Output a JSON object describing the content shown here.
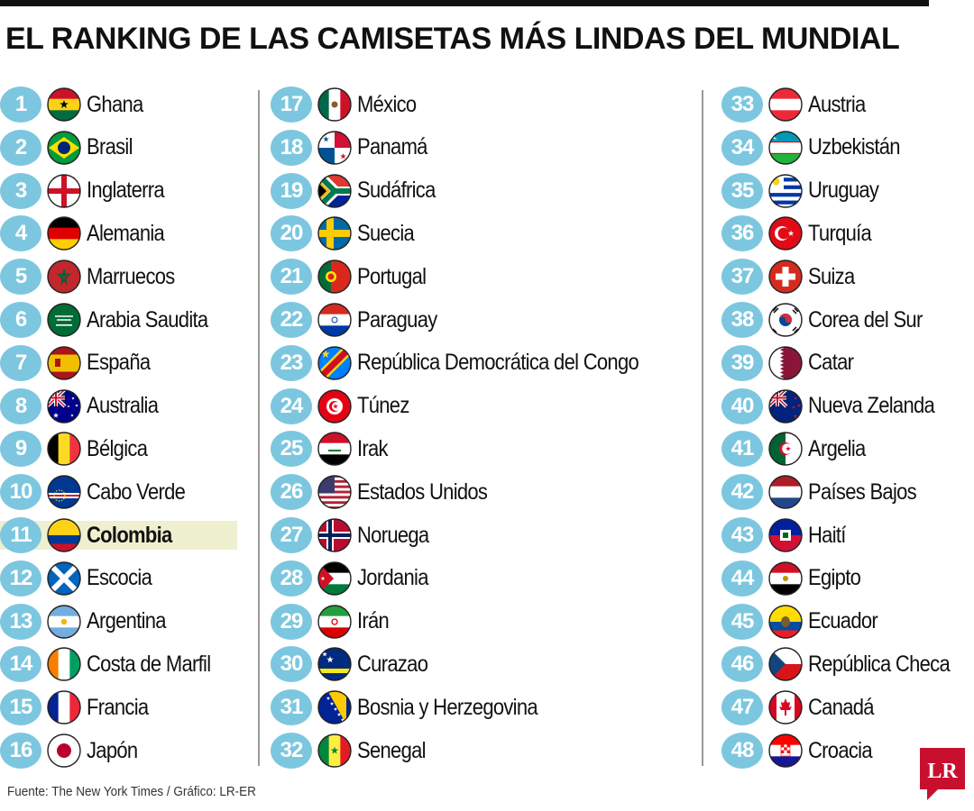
{
  "title": "EL RANKING DE LAS CAMISETAS MÁS LINDAS DEL MUNDIAL",
  "footer": "Fuente: The New York Times / Gráfico: LR-ER",
  "logo_text": "LR",
  "colors": {
    "number_circle": "#7cc7df",
    "highlight": "#eff0cf",
    "logo": "#c8102e"
  },
  "highlight_rank": "11",
  "ranking": [
    {
      "rank": "1",
      "country": "Ghana",
      "flag": "ghana-flag-icon"
    },
    {
      "rank": "2",
      "country": "Brasil",
      "flag": "brasil-flag-icon"
    },
    {
      "rank": "3",
      "country": "Inglaterra",
      "flag": "inglaterra-flag-icon"
    },
    {
      "rank": "4",
      "country": "Alemania",
      "flag": "alemania-flag-icon"
    },
    {
      "rank": "5",
      "country": "Marruecos",
      "flag": "marruecos-flag-icon"
    },
    {
      "rank": "6",
      "country": "Arabia Saudita",
      "flag": "arabia-saudita-flag-icon"
    },
    {
      "rank": "7",
      "country": "España",
      "flag": "espana-flag-icon"
    },
    {
      "rank": "8",
      "country": "Australia",
      "flag": "australia-flag-icon"
    },
    {
      "rank": "9",
      "country": "Bélgica",
      "flag": "belgica-flag-icon"
    },
    {
      "rank": "10",
      "country": "Cabo Verde",
      "flag": "cabo-verde-flag-icon"
    },
    {
      "rank": "11",
      "country": "Colombia",
      "flag": "colombia-flag-icon"
    },
    {
      "rank": "12",
      "country": "Escocia",
      "flag": "escocia-flag-icon"
    },
    {
      "rank": "13",
      "country": "Argentina",
      "flag": "argentina-flag-icon"
    },
    {
      "rank": "14",
      "country": "Costa de Marfil",
      "flag": "costa-de-marfil-flag-icon"
    },
    {
      "rank": "15",
      "country": "Francia",
      "flag": "francia-flag-icon"
    },
    {
      "rank": "16",
      "country": "Japón",
      "flag": "japon-flag-icon"
    },
    {
      "rank": "17",
      "country": "México",
      "flag": "mexico-flag-icon"
    },
    {
      "rank": "18",
      "country": "Panamá",
      "flag": "panama-flag-icon"
    },
    {
      "rank": "19",
      "country": "Sudáfrica",
      "flag": "sudafrica-flag-icon"
    },
    {
      "rank": "20",
      "country": "Suecia",
      "flag": "suecia-flag-icon"
    },
    {
      "rank": "21",
      "country": "Portugal",
      "flag": "portugal-flag-icon"
    },
    {
      "rank": "22",
      "country": "Paraguay",
      "flag": "paraguay-flag-icon"
    },
    {
      "rank": "23",
      "country": "República Democrática del Congo",
      "flag": "rd-congo-flag-icon"
    },
    {
      "rank": "24",
      "country": "Túnez",
      "flag": "tunez-flag-icon"
    },
    {
      "rank": "25",
      "country": "Irak",
      "flag": "irak-flag-icon"
    },
    {
      "rank": "26",
      "country": "Estados Unidos",
      "flag": "estados-unidos-flag-icon"
    },
    {
      "rank": "27",
      "country": "Noruega",
      "flag": "noruega-flag-icon"
    },
    {
      "rank": "28",
      "country": "Jordania",
      "flag": "jordania-flag-icon"
    },
    {
      "rank": "29",
      "country": "Irán",
      "flag": "iran-flag-icon"
    },
    {
      "rank": "30",
      "country": "Curazao",
      "flag": "curazao-flag-icon"
    },
    {
      "rank": "31",
      "country": "Bosnia y Herzegovina",
      "flag": "bosnia-flag-icon"
    },
    {
      "rank": "32",
      "country": "Senegal",
      "flag": "senegal-flag-icon"
    },
    {
      "rank": "33",
      "country": "Austria",
      "flag": "austria-flag-icon"
    },
    {
      "rank": "34",
      "country": "Uzbekistán",
      "flag": "uzbekistan-flag-icon"
    },
    {
      "rank": "35",
      "country": "Uruguay",
      "flag": "uruguay-flag-icon"
    },
    {
      "rank": "36",
      "country": "Turquía",
      "flag": "turquia-flag-icon"
    },
    {
      "rank": "37",
      "country": "Suiza",
      "flag": "suiza-flag-icon"
    },
    {
      "rank": "38",
      "country": "Corea del Sur",
      "flag": "corea-del-sur-flag-icon"
    },
    {
      "rank": "39",
      "country": "Catar",
      "flag": "catar-flag-icon"
    },
    {
      "rank": "40",
      "country": "Nueva Zelanda",
      "flag": "nueva-zelanda-flag-icon"
    },
    {
      "rank": "41",
      "country": "Argelia",
      "flag": "argelia-flag-icon"
    },
    {
      "rank": "42",
      "country": "Países Bajos",
      "flag": "paises-bajos-flag-icon"
    },
    {
      "rank": "43",
      "country": "Haití",
      "flag": "haiti-flag-icon"
    },
    {
      "rank": "44",
      "country": "Egipto",
      "flag": "egipto-flag-icon"
    },
    {
      "rank": "45",
      "country": "Ecuador",
      "flag": "ecuador-flag-icon"
    },
    {
      "rank": "46",
      "country": "República Checa",
      "flag": "republica-checa-flag-icon"
    },
    {
      "rank": "47",
      "country": "Canadá",
      "flag": "canada-flag-icon"
    },
    {
      "rank": "48",
      "country": "Croacia",
      "flag": "croacia-flag-icon"
    }
  ]
}
